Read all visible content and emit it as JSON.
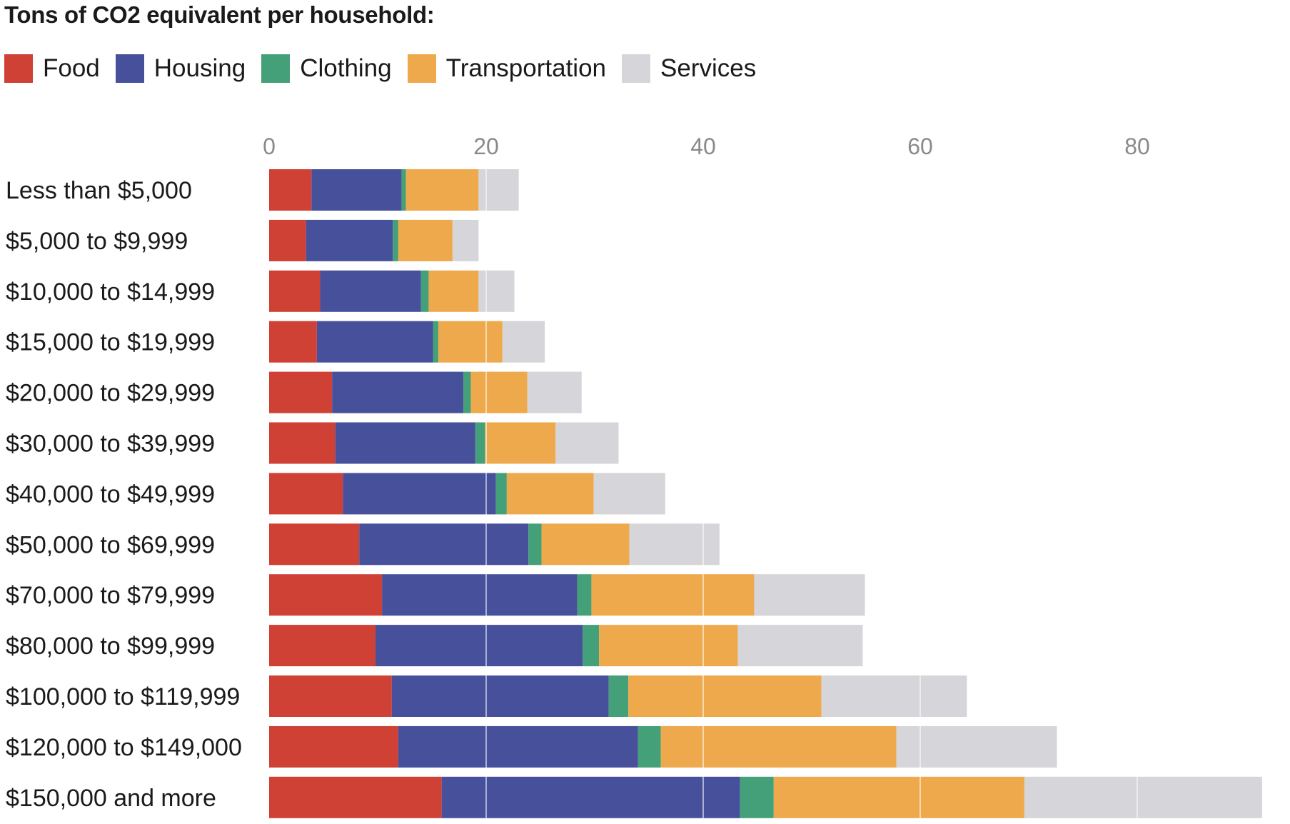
{
  "chart_data": {
    "type": "bar",
    "orientation": "horizontal",
    "stacked": true,
    "title": "Tons of CO2 equivalent per household:",
    "xlabel": "",
    "ylabel": "",
    "xlim": [
      0,
      92
    ],
    "x_ticks": [
      "0",
      "20",
      "40",
      "60",
      "80"
    ],
    "grid": true,
    "legend_position": "top-left",
    "categories": [
      "Less than $5,000",
      "$5,000 to $9,999",
      "$10,000 to $14,999",
      "$15,000 to $19,999",
      "$20,000 to $29,999",
      "$30,000 to $39,999",
      "$40,000 to $49,999",
      "$50,000 to $69,999",
      "$70,000 to $79,999",
      "$80,000 to $99,999",
      "$100,000 to $119,999",
      "$120,000 to $149,000",
      "$150,000 and more"
    ],
    "series": [
      {
        "name": "Food",
        "color": "#cf4035",
        "values": [
          3.9,
          3.4,
          4.7,
          4.4,
          5.8,
          6.1,
          6.8,
          8.3,
          10.4,
          9.8,
          11.3,
          11.9,
          15.9
        ]
      },
      {
        "name": "Housing",
        "color": "#47509b",
        "values": [
          8.3,
          8.0,
          9.3,
          10.7,
          12.1,
          12.9,
          14.1,
          15.6,
          18.0,
          19.1,
          20.0,
          22.1,
          27.5
        ]
      },
      {
        "name": "Clothing",
        "color": "#44a078",
        "values": [
          0.4,
          0.5,
          0.7,
          0.5,
          0.7,
          0.9,
          1.0,
          1.2,
          1.3,
          1.5,
          1.8,
          2.1,
          3.1
        ]
      },
      {
        "name": "Transportation",
        "color": "#efa94d",
        "values": [
          6.7,
          5.0,
          4.6,
          5.9,
          5.2,
          6.5,
          8.0,
          8.1,
          15.0,
          12.8,
          17.8,
          21.7,
          23.1
        ]
      },
      {
        "name": "Services",
        "color": "#d5d5da",
        "values": [
          3.7,
          2.4,
          3.3,
          3.9,
          5.0,
          5.8,
          6.6,
          8.3,
          10.2,
          11.5,
          13.4,
          14.8,
          21.9
        ]
      }
    ]
  }
}
